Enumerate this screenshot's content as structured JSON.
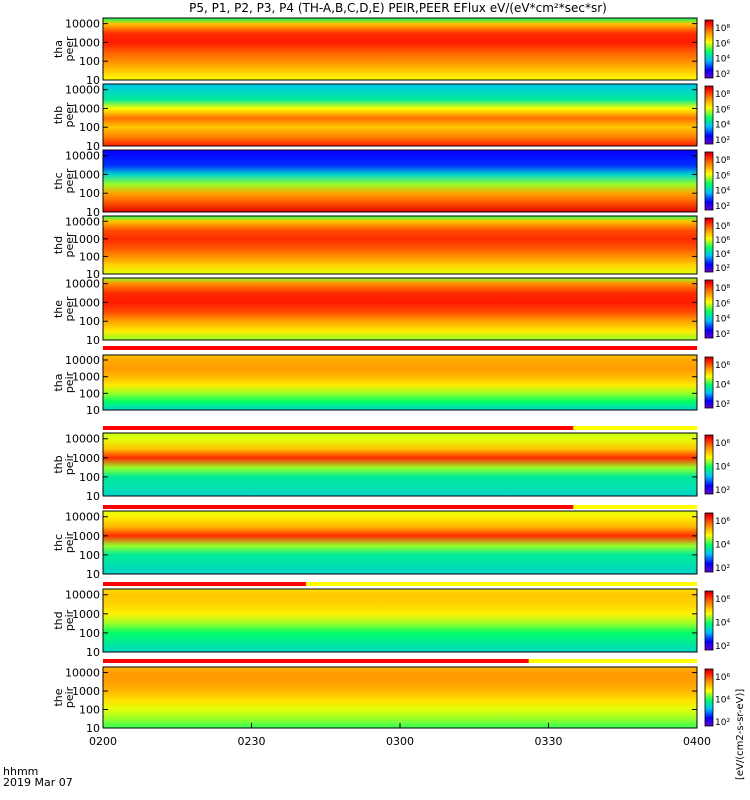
{
  "chart_data": {
    "type": "heatmap",
    "title": "P5, P1, P2, P3, P4 (TH-A,B,C,D,E) PEIR,PEER EFlux eV/(eV*cm²*sec*sr)",
    "x": {
      "label_line1": "hhmm",
      "label_line2": "2019 Mar 07",
      "ticks": [
        "0200",
        "0230",
        "0300",
        "0330",
        "0400"
      ],
      "range": [
        "02:00",
        "04:00"
      ]
    },
    "y_scale": "log",
    "ylim": [
      10,
      10000
    ],
    "y_ticks": [
      "10000",
      "1000",
      "100",
      "10"
    ],
    "colorbar_label": "[eV/(cm2-s-sr-eV)]",
    "colorbar_ticks_electron": [
      "10⁸",
      "10⁶",
      "10⁴",
      "10²"
    ],
    "colorbar_ticks_ion": [
      "10⁶",
      "10⁴",
      "10²"
    ],
    "panels": [
      {
        "probe": "tha",
        "species": "peer",
        "bands": [
          {
            "energy": 10,
            "level": 0.62
          },
          {
            "energy": 30,
            "level": 0.7
          },
          {
            "energy": 100,
            "level": 0.78
          },
          {
            "energy": 300,
            "level": 0.84
          },
          {
            "energy": 1000,
            "level": 0.92
          },
          {
            "energy": 3000,
            "level": 0.9
          },
          {
            "energy": 10000,
            "level": 0.7
          },
          {
            "energy": 20000,
            "level": 0.45
          }
        ]
      },
      {
        "probe": "thb",
        "species": "peer",
        "bands": [
          {
            "energy": 10,
            "level": 0.92
          },
          {
            "energy": 30,
            "level": 0.8
          },
          {
            "energy": 100,
            "level": 0.7
          },
          {
            "energy": 300,
            "level": 0.82
          },
          {
            "energy": 1000,
            "level": 0.62
          },
          {
            "energy": 3000,
            "level": 0.4
          },
          {
            "energy": 10000,
            "level": 0.35
          },
          {
            "energy": 20000,
            "level": 0.32
          }
        ]
      },
      {
        "probe": "thc",
        "species": "peer",
        "bands": [
          {
            "energy": 10,
            "level": 0.97
          },
          {
            "energy": 30,
            "level": 0.85
          },
          {
            "energy": 100,
            "level": 0.75
          },
          {
            "energy": 300,
            "level": 0.55
          },
          {
            "energy": 1000,
            "level": 0.35
          },
          {
            "energy": 3000,
            "level": 0.18
          },
          {
            "energy": 10000,
            "level": 0.15
          },
          {
            "energy": 20000,
            "level": 0.12
          }
        ]
      },
      {
        "probe": "thd",
        "species": "peer",
        "bands": [
          {
            "energy": 10,
            "level": 0.6
          },
          {
            "energy": 30,
            "level": 0.68
          },
          {
            "energy": 100,
            "level": 0.78
          },
          {
            "energy": 300,
            "level": 0.85
          },
          {
            "energy": 1000,
            "level": 0.9
          },
          {
            "energy": 3000,
            "level": 0.86
          },
          {
            "energy": 10000,
            "level": 0.7
          },
          {
            "energy": 20000,
            "level": 0.48
          }
        ]
      },
      {
        "probe": "the",
        "species": "peer",
        "bands": [
          {
            "energy": 10,
            "level": 0.55
          },
          {
            "energy": 30,
            "level": 0.65
          },
          {
            "energy": 100,
            "level": 0.75
          },
          {
            "energy": 300,
            "level": 0.86
          },
          {
            "energy": 1000,
            "level": 0.92
          },
          {
            "energy": 3000,
            "level": 0.9
          },
          {
            "energy": 10000,
            "level": 0.78
          },
          {
            "energy": 20000,
            "level": 0.55
          }
        ]
      },
      {
        "probe": "tha",
        "species": "peir",
        "bands": [
          {
            "energy": 10,
            "level": 0.35
          },
          {
            "energy": 30,
            "level": 0.45
          },
          {
            "energy": 100,
            "level": 0.55
          },
          {
            "energy": 300,
            "level": 0.65
          },
          {
            "energy": 1000,
            "level": 0.72
          },
          {
            "energy": 3000,
            "level": 0.76
          },
          {
            "energy": 10000,
            "level": 0.74
          },
          {
            "energy": 20000,
            "level": 0.7
          }
        ]
      },
      {
        "probe": "thb",
        "species": "peir",
        "bands": [
          {
            "energy": 10,
            "level": 0.35
          },
          {
            "energy": 30,
            "level": 0.38
          },
          {
            "energy": 100,
            "level": 0.4
          },
          {
            "energy": 300,
            "level": 0.55
          },
          {
            "energy": 1000,
            "level": 0.9
          },
          {
            "energy": 3000,
            "level": 0.7
          },
          {
            "energy": 10000,
            "level": 0.6
          },
          {
            "energy": 20000,
            "level": 0.58
          }
        ]
      },
      {
        "probe": "thc",
        "species": "peir",
        "bands": [
          {
            "energy": 10,
            "level": 0.35
          },
          {
            "energy": 30,
            "level": 0.38
          },
          {
            "energy": 100,
            "level": 0.4
          },
          {
            "energy": 300,
            "level": 0.55
          },
          {
            "energy": 1000,
            "level": 0.9
          },
          {
            "energy": 3000,
            "level": 0.72
          },
          {
            "energy": 10000,
            "level": 0.64
          },
          {
            "energy": 20000,
            "level": 0.6
          }
        ]
      },
      {
        "probe": "thd",
        "species": "peir",
        "bands": [
          {
            "energy": 10,
            "level": 0.36
          },
          {
            "energy": 30,
            "level": 0.4
          },
          {
            "energy": 100,
            "level": 0.45
          },
          {
            "energy": 300,
            "level": 0.55
          },
          {
            "energy": 1000,
            "level": 0.64
          },
          {
            "energy": 3000,
            "level": 0.68
          },
          {
            "energy": 10000,
            "level": 0.7
          },
          {
            "energy": 20000,
            "level": 0.66
          }
        ]
      },
      {
        "probe": "the",
        "species": "peir",
        "bands": [
          {
            "energy": 10,
            "level": 0.48
          },
          {
            "energy": 30,
            "level": 0.55
          },
          {
            "energy": 100,
            "level": 0.6
          },
          {
            "energy": 300,
            "level": 0.66
          },
          {
            "energy": 1000,
            "level": 0.72
          },
          {
            "energy": 3000,
            "level": 0.76
          },
          {
            "energy": 10000,
            "level": 0.76
          },
          {
            "energy": 20000,
            "level": 0.72
          }
        ]
      }
    ],
    "status_bars": [
      {
        "after_panel": 5,
        "red_until": "04:00"
      },
      {
        "after_panel": 6,
        "red_until": "03:35"
      },
      {
        "after_panel": 7,
        "red_until": "03:35"
      },
      {
        "after_panel": 8,
        "red_until": "02:41"
      },
      {
        "after_panel": 9,
        "red_until": "03:26"
      }
    ]
  }
}
